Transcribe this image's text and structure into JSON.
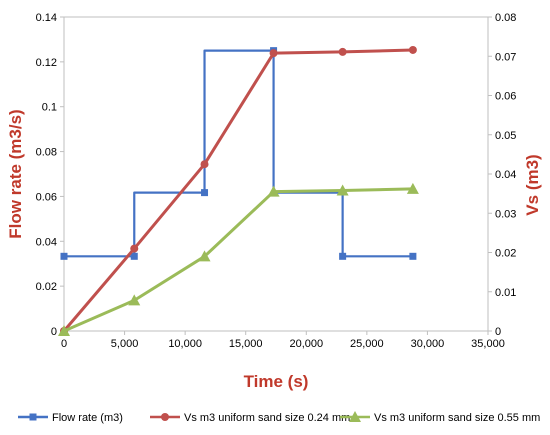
{
  "chart_data": {
    "type": "line",
    "title": "",
    "xlabel": "Time (s)",
    "ylabel_left": "Flow rate (m3/s)",
    "ylabel_right": "Vs (m3)",
    "xlim": [
      0,
      35000
    ],
    "ylim_left": [
      0,
      0.14
    ],
    "ylim_right": [
      0,
      0.08
    ],
    "x_ticks": [
      0,
      5000,
      10000,
      15000,
      20000,
      25000,
      30000,
      35000
    ],
    "x_tick_labels": [
      "0",
      "5,000",
      "10,000",
      "15,000",
      "20,000",
      "25,000",
      "30,000",
      "35,000"
    ],
    "y_left_ticks": [
      0,
      0.02,
      0.04,
      0.06,
      0.08,
      0.1,
      0.12,
      0.14
    ],
    "y_left_tick_labels": [
      "0",
      "0.02",
      "0.04",
      "0.06",
      "0.08",
      "0.1",
      "0.12",
      "0.14"
    ],
    "y_right_ticks": [
      0,
      0.01,
      0.02,
      0.03,
      0.04,
      0.05,
      0.06,
      0.07,
      0.08
    ],
    "y_right_tick_labels": [
      "0",
      "0.01",
      "0.02",
      "0.03",
      "0.04",
      "0.05",
      "0.06",
      "0.07",
      "0.08"
    ],
    "grid": false,
    "legend_position": "bottom",
    "series": [
      {
        "name": "Flow rate (m3)",
        "axis": "left",
        "color": "#4472c4",
        "marker": "square",
        "step_x": [
          0,
          5800,
          5800,
          11600,
          11600,
          17300,
          17300,
          23000,
          23000,
          28800
        ],
        "step_y": [
          0.0333,
          0.0333,
          0.0617,
          0.0617,
          0.125,
          0.125,
          0.0617,
          0.0617,
          0.0333,
          0.0333
        ],
        "x": [
          0,
          5800,
          11600,
          17300,
          23000,
          28800
        ],
        "y": [
          0.0333,
          0.0333,
          0.0617,
          0.125,
          0.0333,
          0.0333
        ]
      },
      {
        "name": "Vs m3 uniform sand size 0.24 mm",
        "axis": "right",
        "color": "#c0504d",
        "marker": "circle",
        "x": [
          0,
          5800,
          11600,
          17300,
          23000,
          28800
        ],
        "y": [
          0,
          0.021,
          0.0425,
          0.0708,
          0.0711,
          0.0716
        ]
      },
      {
        "name": "Vs m3 uniform sand size 0.55 mm",
        "axis": "right",
        "color": "#9bbb59",
        "marker": "triangle",
        "x": [
          0,
          5800,
          11600,
          17300,
          23000,
          28800
        ],
        "y": [
          0,
          0.0078,
          0.019,
          0.0355,
          0.0358,
          0.0362
        ]
      }
    ]
  }
}
